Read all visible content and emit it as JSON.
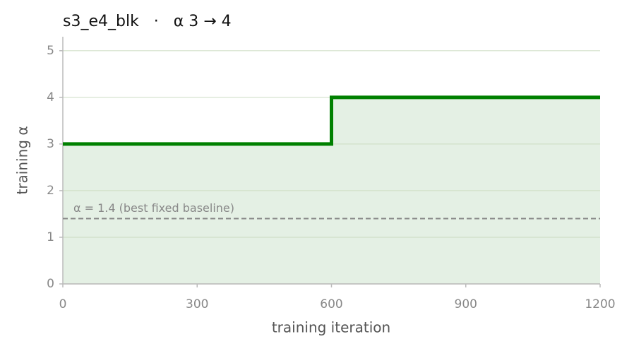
{
  "chart_data": {
    "type": "line",
    "title": "s3_e4_blk   ·   α 3 → 4",
    "x_label": "training iteration",
    "y_label": "training α",
    "x": [
      0,
      600,
      600,
      1200
    ],
    "series": [
      {
        "name": "training α",
        "color": "#008000",
        "values": [
          3,
          3,
          4,
          4
        ]
      }
    ],
    "fill_color": "#e4f0e4",
    "reference": {
      "value": 1.4,
      "label": "α = 1.4 (best fixed baseline)",
      "color": "#888888"
    },
    "xlim": [
      0,
      1200
    ],
    "xticks": [
      0,
      300,
      600,
      900,
      1200
    ],
    "ylim": [
      0,
      5.3
    ],
    "yticks": [
      0,
      1,
      2,
      3,
      4,
      5
    ],
    "grid": true
  }
}
